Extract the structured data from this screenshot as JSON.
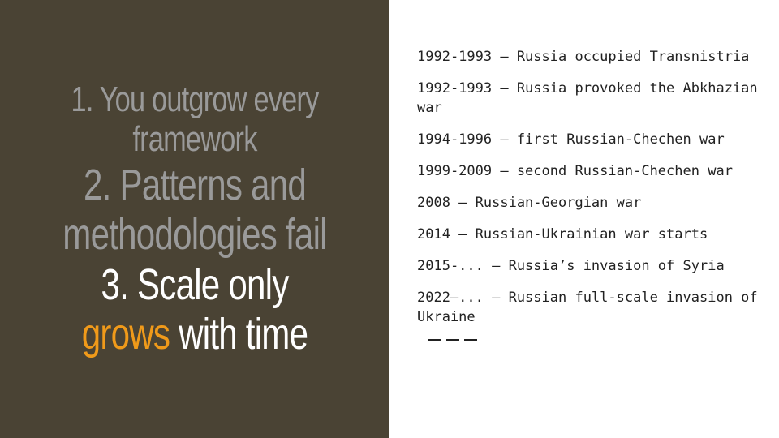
{
  "left": {
    "point1": "1. You outgrow every framework",
    "point2": "2. Patterns and methodologies fail",
    "point3_prefix": "3. Scale only ",
    "point3_accent": "grows",
    "point3_suffix": " with time",
    "accent_color": "#f09a1a",
    "background_color": "#4a4334"
  },
  "timeline": [
    "1992-1993 – Russia occupied Transnistria",
    "1992-1993 – Russia provoked the Abkhazian war",
    "1994-1996 – first Russian-Chechen war",
    "1999-2009 – second Russian-Chechen war",
    "2008 – Russian-Georgian war",
    "2014 — Russian-Ukrainian war starts",
    "2015-... – Russia’s invasion of Syria",
    "2022—... – Russian full-scale invasion of Ukraine"
  ]
}
